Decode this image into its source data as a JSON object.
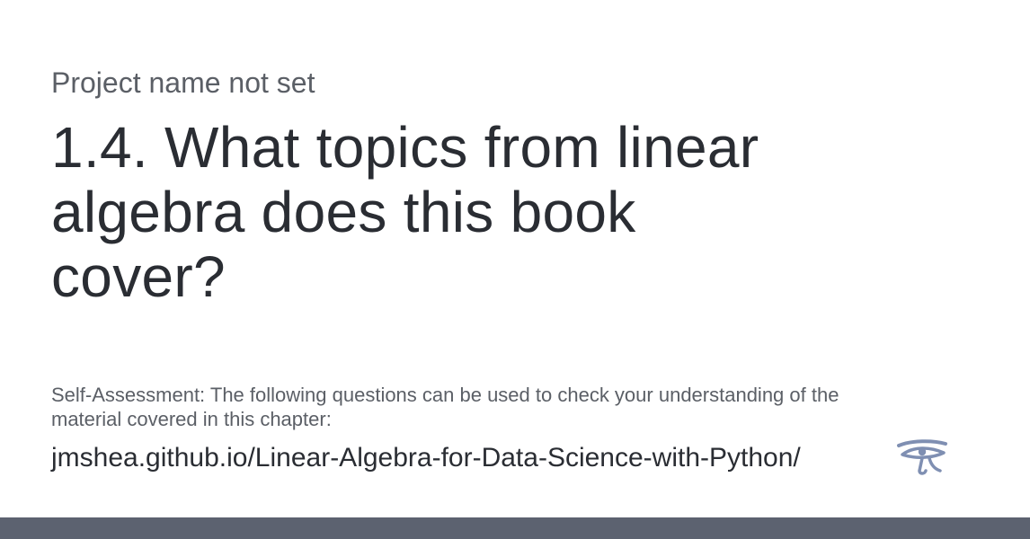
{
  "card": {
    "project_name": "Project name not set",
    "title": "1.4. What topics from linear algebra does this book cover?",
    "description": "Self-Assessment: The following questions can be used to check your understanding of the material covered in this chapter:",
    "url": "jmshea.github.io/Linear-Algebra-for-Data-Science-with-Python/",
    "logo_icon": "eye-of-horus-icon"
  },
  "colors": {
    "text_primary": "#2a2d33",
    "text_secondary": "#5b5f66",
    "logo": "#7f8fb2",
    "bottom_bar": "#5c6270"
  }
}
